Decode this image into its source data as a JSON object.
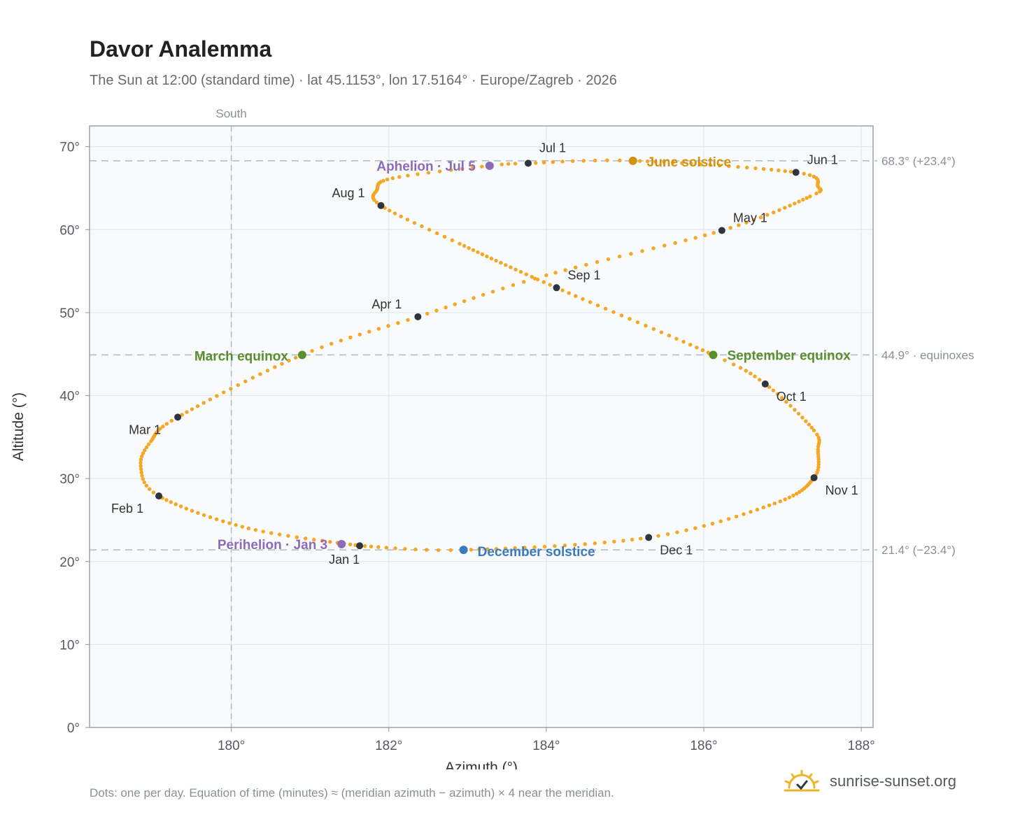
{
  "title": "Davor Analemma",
  "subtitle": "The Sun at 12:00 (standard time) · lat 45.1153°, lon 17.5164° · Europe/Zagreb · 2026",
  "footnote": "Dots: one per day. Equation of time (minutes) ≈ (meridian azimuth − azimuth) × 4 near the meridian.",
  "brand": {
    "text": "sunrise-sunset.org",
    "icon": "sun-icon"
  },
  "colors": {
    "path": "#f5a623",
    "month": "#2f3540",
    "solstice_june": "#d4920c",
    "solstice_december": "#3a7bbf",
    "equinox": "#5a8f2e",
    "apsis": "#8e6bb8",
    "background": "#f8fafc",
    "grid": "#e3e8ee",
    "reference": "#aebac6"
  },
  "chart_data": {
    "type": "scatter",
    "xlabel": "Azimuth (°)",
    "ylabel": "Altitude (°)",
    "xlim": [
      178.2,
      188.15
    ],
    "ylim": [
      0,
      72.5
    ],
    "xticks": [
      180,
      182,
      184,
      186,
      188
    ],
    "xtick_labels": [
      "180°",
      "182°",
      "184°",
      "186°",
      "188°"
    ],
    "yticks": [
      0,
      10,
      20,
      30,
      40,
      50,
      60,
      70
    ],
    "ytick_labels": [
      "0°",
      "10°",
      "20°",
      "30°",
      "40°",
      "50°",
      "60°",
      "70°"
    ],
    "grid": true,
    "meridian": {
      "x": 180,
      "label": "South"
    },
    "reference_lines": [
      {
        "y": 68.3,
        "label": "68.3° (+23.4°)"
      },
      {
        "y": 44.9,
        "label": "44.9° · equinoxes"
      },
      {
        "y": 21.4,
        "label": "21.4° (−23.4°)"
      }
    ],
    "months": [
      {
        "label": "Jan 1",
        "x": 181.63,
        "y": 21.9
      },
      {
        "label": "Feb 1",
        "x": 179.08,
        "y": 27.9
      },
      {
        "label": "Mar 1",
        "x": 179.32,
        "y": 37.4
      },
      {
        "label": "Apr 1",
        "x": 182.37,
        "y": 49.5
      },
      {
        "label": "May 1",
        "x": 186.23,
        "y": 59.9
      },
      {
        "label": "Jun 1",
        "x": 187.17,
        "y": 66.9
      },
      {
        "label": "Jul 1",
        "x": 183.77,
        "y": 68.0
      },
      {
        "label": "Aug 1",
        "x": 181.9,
        "y": 62.9
      },
      {
        "label": "Sep 1",
        "x": 184.13,
        "y": 53.0
      },
      {
        "label": "Oct 1",
        "x": 186.78,
        "y": 41.4
      },
      {
        "label": "Nov 1",
        "x": 187.4,
        "y": 30.1
      },
      {
        "label": "Dec 1",
        "x": 185.3,
        "y": 22.9
      }
    ],
    "events": [
      {
        "label": "March equinox",
        "x": 180.9,
        "y": 44.9,
        "kind": "equinox"
      },
      {
        "label": "June solstice",
        "x": 185.1,
        "y": 68.3,
        "kind": "solstice_june"
      },
      {
        "label": "September equinox",
        "x": 186.12,
        "y": 44.9,
        "kind": "equinox"
      },
      {
        "label": "December solstice",
        "x": 182.95,
        "y": 21.4,
        "kind": "solstice_december"
      },
      {
        "label": "Perihelion · Jan 3",
        "x": 181.4,
        "y": 22.1,
        "kind": "apsis"
      },
      {
        "label": "Aphelion · Jul 5",
        "x": 183.28,
        "y": 67.7,
        "kind": "apsis"
      }
    ],
    "path_anchors": [
      [
        1,
        181.63,
        21.9
      ],
      [
        16,
        180.22,
        24.0
      ],
      [
        32,
        179.08,
        27.9
      ],
      [
        41,
        178.85,
        31.5
      ],
      [
        49,
        178.98,
        34.5
      ],
      [
        60,
        179.32,
        37.4
      ],
      [
        79,
        180.9,
        44.9
      ],
      [
        91,
        182.37,
        49.5
      ],
      [
        104,
        184.0,
        54.5
      ],
      [
        121,
        186.23,
        59.9
      ],
      [
        136,
        187.35,
        64.0
      ],
      [
        142,
        187.45,
        65.2
      ],
      [
        152,
        187.17,
        66.9
      ],
      [
        172,
        185.1,
        68.3
      ],
      [
        182,
        183.77,
        68.0
      ],
      [
        186,
        183.28,
        67.7
      ],
      [
        196,
        182.05,
        66.2
      ],
      [
        205,
        181.85,
        64.8
      ],
      [
        213,
        181.9,
        62.9
      ],
      [
        225,
        182.9,
        58.3
      ],
      [
        244,
        184.13,
        53.0
      ],
      [
        266,
        186.12,
        44.9
      ],
      [
        274,
        186.78,
        41.4
      ],
      [
        287,
        187.4,
        35.8
      ],
      [
        294,
        187.45,
        33.5
      ],
      [
        305,
        187.4,
        30.1
      ],
      [
        319,
        186.9,
        27.0
      ],
      [
        335,
        185.3,
        22.9
      ],
      [
        355,
        182.95,
        21.4
      ],
      [
        366,
        181.63,
        21.9
      ]
    ]
  }
}
